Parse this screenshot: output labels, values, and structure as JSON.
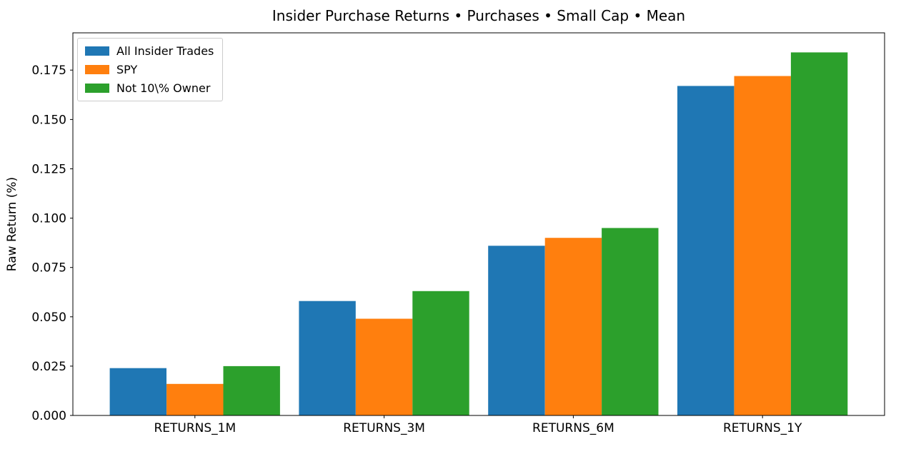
{
  "chart_data": {
    "type": "bar",
    "title": "Insider Purchase Returns • Purchases • Small Cap • Mean",
    "ylabel": "Raw Return (%)",
    "xlabel": "",
    "categories": [
      "RETURNS_1M",
      "RETURNS_3M",
      "RETURNS_6M",
      "RETURNS_1Y"
    ],
    "series": [
      {
        "name": "All Insider Trades",
        "color": "#1f77b4",
        "values": [
          0.024,
          0.058,
          0.086,
          0.167
        ]
      },
      {
        "name": "SPY",
        "color": "#ff7f0e",
        "values": [
          0.016,
          0.049,
          0.09,
          0.172
        ]
      },
      {
        "name": "Not 10\\% Owner",
        "color": "#2ca02c",
        "values": [
          0.025,
          0.063,
          0.095,
          0.184
        ]
      }
    ],
    "yticks": [
      "0.000",
      "0.025",
      "0.050",
      "0.075",
      "0.100",
      "0.125",
      "0.150",
      "0.175"
    ],
    "ytick_values": [
      0,
      0.025,
      0.05,
      0.075,
      0.1,
      0.125,
      0.15,
      0.175
    ],
    "ylim": [
      0,
      0.1939
    ],
    "xlim": [
      -0.645,
      3.645
    ],
    "bar_width": 0.3,
    "group_offsets": [
      -0.3,
      0,
      0.3
    ],
    "legend_position": "upper left",
    "grid": false,
    "axis_color": "#000000",
    "background": "#ffffff"
  }
}
